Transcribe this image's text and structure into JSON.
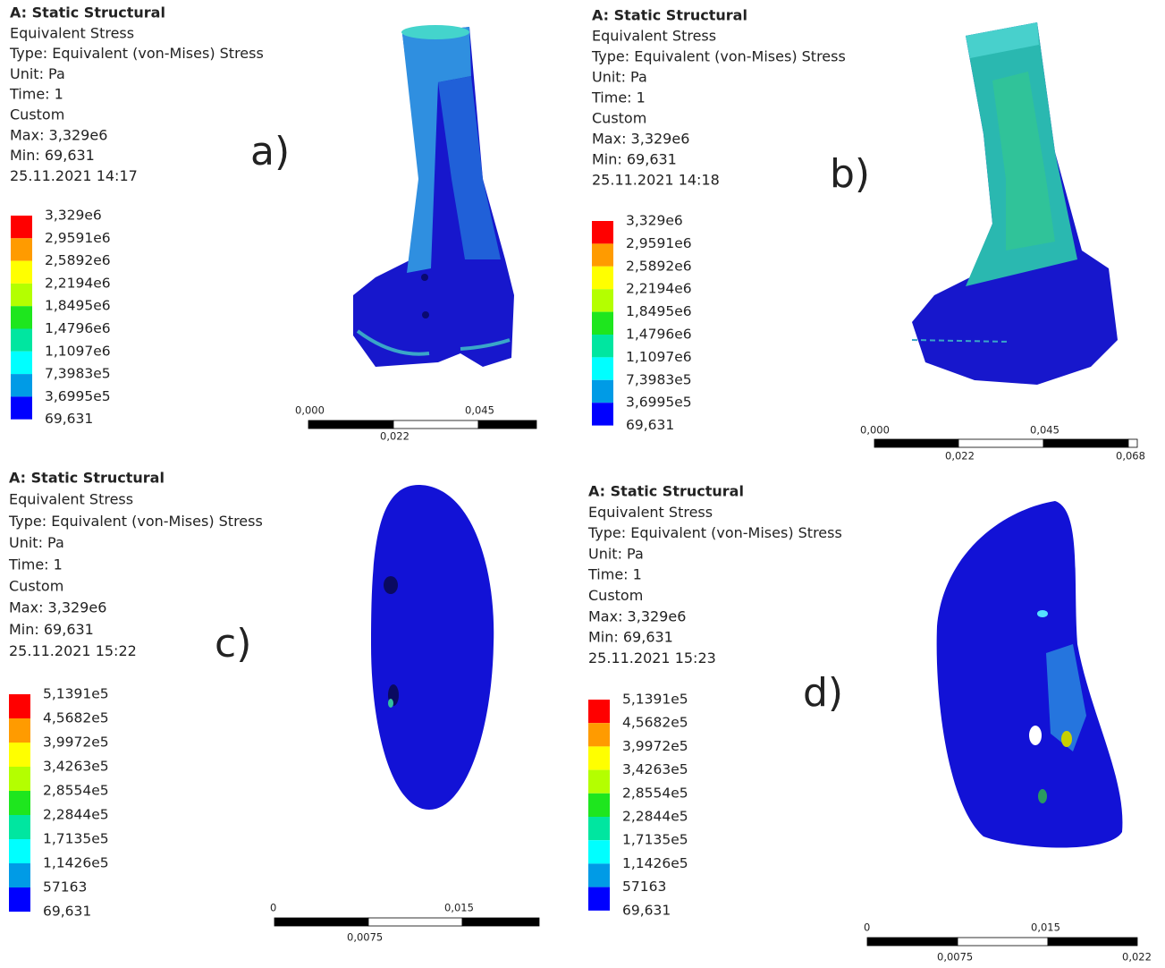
{
  "panels": [
    {
      "letter": "a)",
      "header": [
        "A: Static Structural",
        "Equivalent Stress",
        "Type: Equivalent (von-Mises) Stress",
        "Unit: Pa",
        "Time: 1",
        "Custom",
        "Max: 3,329e6",
        "Min: 69,631",
        "25.11.2021 14:17"
      ],
      "legend": [
        "3,329e6",
        "2,9591e6",
        "2,5892e6",
        "2,2194e6",
        "1,8495e6",
        "1,4796e6",
        "1,1097e6",
        "7,3983e5",
        "3,6995e5",
        "69,631"
      ],
      "scale": [
        "0,000",
        "0,045",
        "0,022"
      ]
    },
    {
      "letter": "b)",
      "header": [
        "A: Static Structural",
        "Equivalent Stress",
        "Type: Equivalent (von-Mises) Stress",
        "Unit: Pa",
        "Time: 1",
        "Custom",
        "Max: 3,329e6",
        "Min: 69,631",
        "25.11.2021 14:18"
      ],
      "legend": [
        "3,329e6",
        "2,9591e6",
        "2,5892e6",
        "2,2194e6",
        "1,8495e6",
        "1,4796e6",
        "1,1097e6",
        "7,3983e5",
        "3,6995e5",
        "69,631"
      ],
      "scale": [
        "0,000",
        "0,045",
        "0,022",
        "0,068"
      ]
    },
    {
      "letter": "c)",
      "header": [
        "A: Static Structural",
        "Equivalent Stress",
        "Type: Equivalent (von-Mises) Stress",
        "Unit: Pa",
        "Time: 1",
        "Custom",
        "Max: 3,329e6",
        "Min: 69,631",
        "25.11.2021 15:22"
      ],
      "legend": [
        "5,1391e5",
        "4,5682e5",
        "3,9972e5",
        "3,4263e5",
        "2,8554e5",
        "2,2844e5",
        "1,7135e5",
        "1,1426e5",
        "57163",
        "69,631"
      ],
      "scale": [
        "0",
        "0,015",
        "0,0075"
      ]
    },
    {
      "letter": "d)",
      "header": [
        "A: Static Structural",
        "Equivalent Stress",
        "Type: Equivalent (von-Mises) Stress",
        "Unit: Pa",
        "Time: 1",
        "Custom",
        "Max: 3,329e6",
        "Min: 69,631",
        "25.11.2021 15:23"
      ],
      "legend": [
        "5,1391e5",
        "4,5682e5",
        "3,9972e5",
        "3,4263e5",
        "2,8554e5",
        "2,2844e5",
        "1,7135e5",
        "1,1426e5",
        "57163",
        "69,631"
      ],
      "scale": [
        "0",
        "0,015",
        "0,0075",
        "0,022"
      ]
    }
  ]
}
